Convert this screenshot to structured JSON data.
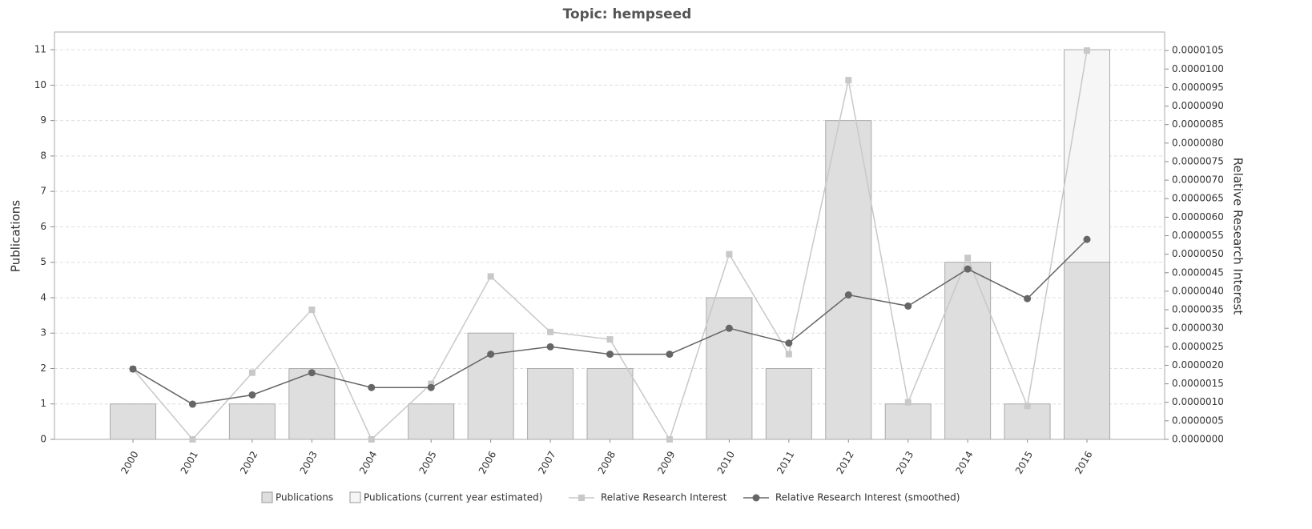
{
  "chart_data": {
    "type": "bar",
    "title": "Topic: hempseed",
    "ylabel": "Publications",
    "y2label": "Relative Research Interest",
    "categories": [
      "2000",
      "2001",
      "2002",
      "2003",
      "2004",
      "2005",
      "2006",
      "2007",
      "2008",
      "2009",
      "2010",
      "2011",
      "2012",
      "2013",
      "2014",
      "2015",
      "2016"
    ],
    "series": [
      {
        "name": "Publications",
        "type": "bar",
        "color": "#dedede",
        "values": [
          1,
          0,
          1,
          2,
          0,
          1,
          3,
          2,
          2,
          0,
          4,
          2,
          9,
          1,
          5,
          1,
          5
        ]
      },
      {
        "name": "Publications (current year estimated)",
        "type": "bar",
        "color": "#f6f6f6",
        "values": [
          null,
          null,
          null,
          null,
          null,
          null,
          null,
          null,
          null,
          null,
          null,
          null,
          null,
          null,
          null,
          null,
          11
        ]
      },
      {
        "name": "Relative Research Interest",
        "type": "line",
        "marker": "square",
        "axis": "y2",
        "color": "#c8c8c8",
        "values": [
          1.9e-06,
          0,
          1.8e-06,
          3.5e-06,
          0,
          1.5e-06,
          4.4e-06,
          2.9e-06,
          2.7e-06,
          0,
          5e-06,
          2.3e-06,
          9.7e-06,
          1e-06,
          4.9e-06,
          9e-07,
          1.05e-05
        ]
      },
      {
        "name": "Relative Research Interest (smoothed)",
        "type": "line",
        "marker": "circle",
        "axis": "y2",
        "color": "#666666",
        "values": [
          1.9e-06,
          9.5e-07,
          1.2e-06,
          1.8e-06,
          1.4e-06,
          1.4e-06,
          2.3e-06,
          2.5e-06,
          2.3e-06,
          2.3e-06,
          3e-06,
          2.6e-06,
          3.9e-06,
          3.6e-06,
          4.6e-06,
          3.8e-06,
          5.4e-06
        ]
      }
    ],
    "ylim": [
      0,
      11.5
    ],
    "yticks": [
      0,
      1,
      2,
      3,
      4,
      5,
      6,
      7,
      8,
      9,
      10,
      11
    ],
    "y2lim": [
      0,
      1.1e-05
    ],
    "y2ticks": [
      {
        "value": 0,
        "label": "0.0000000"
      },
      {
        "value": 5e-07,
        "label": "0.0000005"
      },
      {
        "value": 1e-06,
        "label": "0.0000010"
      },
      {
        "value": 1.5e-06,
        "label": "0.0000015"
      },
      {
        "value": 2e-06,
        "label": "0.0000020"
      },
      {
        "value": 2.5e-06,
        "label": "0.0000025"
      },
      {
        "value": 3e-06,
        "label": "0.0000030"
      },
      {
        "value": 3.5e-06,
        "label": "0.0000035"
      },
      {
        "value": 4e-06,
        "label": "0.0000040"
      },
      {
        "value": 4.5e-06,
        "label": "0.0000045"
      },
      {
        "value": 5e-06,
        "label": "0.0000050"
      },
      {
        "value": 5.5e-06,
        "label": "0.0000055"
      },
      {
        "value": 6e-06,
        "label": "0.0000060"
      },
      {
        "value": 6.5e-06,
        "label": "0.0000065"
      },
      {
        "value": 7e-06,
        "label": "0.0000070"
      },
      {
        "value": 7.5e-06,
        "label": "0.0000075"
      },
      {
        "value": 8e-06,
        "label": "0.0000080"
      },
      {
        "value": 8.5e-06,
        "label": "0.0000085"
      },
      {
        "value": 9e-06,
        "label": "0.0000090"
      },
      {
        "value": 9.5e-06,
        "label": "0.0000095"
      },
      {
        "value": 1e-05,
        "label": "0.0000100"
      },
      {
        "value": 1.05e-05,
        "label": "0.0000105"
      }
    ],
    "grid": true,
    "legend": "bottom"
  }
}
